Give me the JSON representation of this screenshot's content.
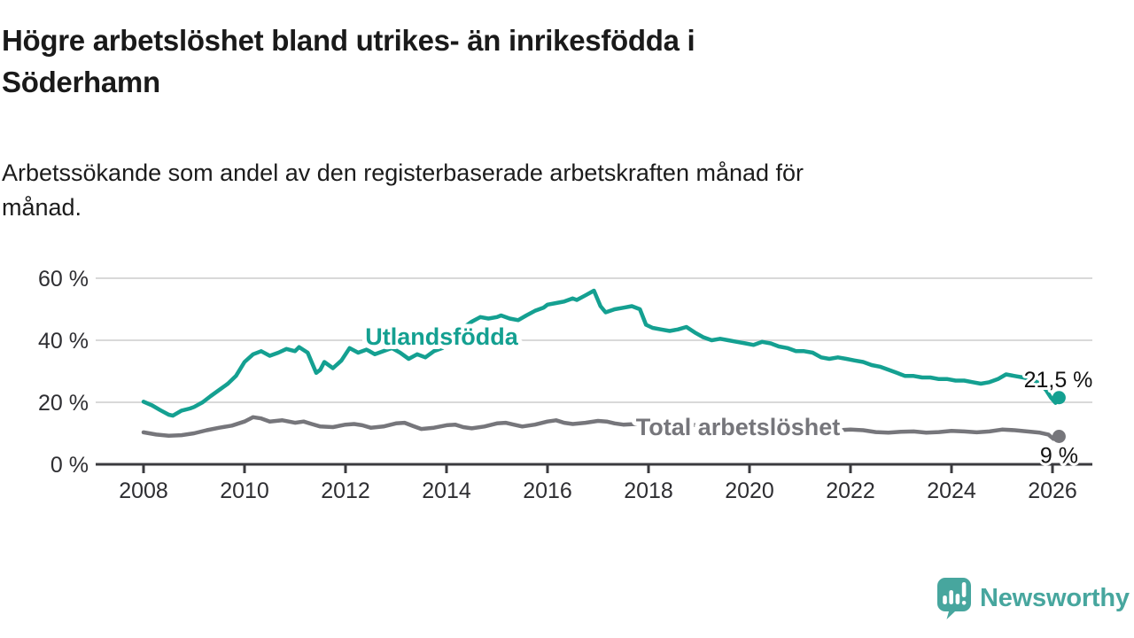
{
  "header": {
    "title": "Högre arbetslöshet bland utrikes- än inrikesfödda i Söderhamn",
    "title_lines": [
      "Högre arbetslöshet bland utrikes- än inrikesfödda i",
      "Söderhamn"
    ],
    "subtitle": "Arbetssökande som andel av den registerbaserade arbetskraften månad för månad.",
    "subtitle_lines": [
      "Arbetssökande som andel av den registerbaserade arbetskraften månad för",
      "månad."
    ]
  },
  "colors": {
    "foreign_line": "#14a091",
    "total_line": "#76767b",
    "axis": "#3b3b3f",
    "tick_text": "#2e2e32",
    "gridline": "#d9d9d9",
    "value_label_text": "#121212",
    "logo_teal": "#47a69e"
  },
  "footer": {
    "brand": "Newsworthy"
  },
  "chart_data": {
    "type": "line",
    "unit": "%",
    "grid": "horizontal",
    "legend_position": "inline-labels-on-lines",
    "y_axis": {
      "ylim": [
        0,
        62
      ],
      "ticks": [
        {
          "value": 0,
          "label": "0 %"
        },
        {
          "value": 20,
          "label": "20 %"
        },
        {
          "value": 40,
          "label": "40 %"
        },
        {
          "value": 60,
          "label": "60 %"
        }
      ]
    },
    "x_axis": {
      "xlim": [
        2007.05,
        2026.8
      ],
      "ticks": [
        {
          "value": 2008,
          "label": "2008"
        },
        {
          "value": 2010,
          "label": "2010"
        },
        {
          "value": 2012,
          "label": "2012"
        },
        {
          "value": 2014,
          "label": "2014"
        },
        {
          "value": 2016,
          "label": "2016"
        },
        {
          "value": 2018,
          "label": "2018"
        },
        {
          "value": 2020,
          "label": "2020"
        },
        {
          "value": 2022,
          "label": "2022"
        },
        {
          "value": 2024,
          "label": "2024"
        },
        {
          "value": 2026,
          "label": "2026"
        }
      ]
    },
    "series": [
      {
        "name": "Utlandsfödda",
        "color": "#14a091",
        "end_dot": true,
        "end_value": 21.5,
        "end_label": "21,5 %",
        "end_label_pos": {
          "anchor": "end",
          "dx": 38,
          "dy": -12
        },
        "inline_label": {
          "text": "Utlandsfödda",
          "x_year": 2012.39,
          "y_value": 38.6
        },
        "points": [
          [
            2008.0,
            20.2
          ],
          [
            2008.17,
            19.0
          ],
          [
            2008.33,
            17.5
          ],
          [
            2008.5,
            16.0
          ],
          [
            2008.58,
            15.7
          ],
          [
            2008.75,
            17.3
          ],
          [
            2008.92,
            18.0
          ],
          [
            2009.0,
            18.5
          ],
          [
            2009.17,
            20.0
          ],
          [
            2009.33,
            22.0
          ],
          [
            2009.5,
            24.0
          ],
          [
            2009.67,
            26.0
          ],
          [
            2009.83,
            28.5
          ],
          [
            2010.0,
            33.0
          ],
          [
            2010.17,
            35.5
          ],
          [
            2010.33,
            36.5
          ],
          [
            2010.5,
            35.0
          ],
          [
            2010.67,
            36.0
          ],
          [
            2010.83,
            37.2
          ],
          [
            2011.0,
            36.5
          ],
          [
            2011.08,
            37.8
          ],
          [
            2011.25,
            36.0
          ],
          [
            2011.42,
            29.5
          ],
          [
            2011.5,
            30.5
          ],
          [
            2011.58,
            33.0
          ],
          [
            2011.75,
            31.0
          ],
          [
            2011.92,
            33.5
          ],
          [
            2012.0,
            35.5
          ],
          [
            2012.08,
            37.5
          ],
          [
            2012.25,
            36.0
          ],
          [
            2012.42,
            37.0
          ],
          [
            2012.58,
            35.5
          ],
          [
            2012.75,
            36.5
          ],
          [
            2012.92,
            37.5
          ],
          [
            2013.08,
            36.0
          ],
          [
            2013.25,
            34.0
          ],
          [
            2013.42,
            35.5
          ],
          [
            2013.58,
            34.5
          ],
          [
            2013.75,
            36.5
          ],
          [
            2013.92,
            37.5
          ],
          [
            2014.0,
            39.0
          ],
          [
            2014.17,
            41.5
          ],
          [
            2014.33,
            44.0
          ],
          [
            2014.5,
            46.0
          ],
          [
            2014.67,
            47.5
          ],
          [
            2014.83,
            47.0
          ],
          [
            2015.0,
            47.5
          ],
          [
            2015.08,
            48.0
          ],
          [
            2015.25,
            47.0
          ],
          [
            2015.42,
            46.5
          ],
          [
            2015.58,
            48.0
          ],
          [
            2015.75,
            49.5
          ],
          [
            2015.92,
            50.5
          ],
          [
            2016.0,
            51.5
          ],
          [
            2016.17,
            52.0
          ],
          [
            2016.33,
            52.5
          ],
          [
            2016.5,
            53.5
          ],
          [
            2016.58,
            53.0
          ],
          [
            2016.75,
            54.5
          ],
          [
            2016.92,
            56.0
          ],
          [
            2017.05,
            51.0
          ],
          [
            2017.15,
            49.0
          ],
          [
            2017.33,
            50.0
          ],
          [
            2017.5,
            50.5
          ],
          [
            2017.67,
            51.0
          ],
          [
            2017.83,
            50.0
          ],
          [
            2017.95,
            45.0
          ],
          [
            2018.08,
            44.0
          ],
          [
            2018.25,
            43.5
          ],
          [
            2018.42,
            43.0
          ],
          [
            2018.58,
            43.5
          ],
          [
            2018.75,
            44.3
          ],
          [
            2018.92,
            42.5
          ],
          [
            2019.08,
            41.0
          ],
          [
            2019.25,
            40.0
          ],
          [
            2019.42,
            40.5
          ],
          [
            2019.58,
            40.0
          ],
          [
            2019.75,
            39.5
          ],
          [
            2019.92,
            39.0
          ],
          [
            2020.08,
            38.5
          ],
          [
            2020.25,
            39.5
          ],
          [
            2020.42,
            39.0
          ],
          [
            2020.58,
            38.0
          ],
          [
            2020.75,
            37.5
          ],
          [
            2020.92,
            36.5
          ],
          [
            2021.08,
            36.5
          ],
          [
            2021.25,
            36.0
          ],
          [
            2021.42,
            34.5
          ],
          [
            2021.58,
            34.0
          ],
          [
            2021.75,
            34.5
          ],
          [
            2021.92,
            34.0
          ],
          [
            2022.08,
            33.5
          ],
          [
            2022.25,
            33.0
          ],
          [
            2022.42,
            32.0
          ],
          [
            2022.58,
            31.5
          ],
          [
            2022.75,
            30.5
          ],
          [
            2022.92,
            29.5
          ],
          [
            2023.08,
            28.5
          ],
          [
            2023.25,
            28.5
          ],
          [
            2023.42,
            28.0
          ],
          [
            2023.58,
            28.0
          ],
          [
            2023.75,
            27.5
          ],
          [
            2023.92,
            27.5
          ],
          [
            2024.08,
            27.0
          ],
          [
            2024.25,
            27.0
          ],
          [
            2024.42,
            26.5
          ],
          [
            2024.58,
            26.0
          ],
          [
            2024.75,
            26.5
          ],
          [
            2024.92,
            27.5
          ],
          [
            2025.08,
            29.0
          ],
          [
            2025.25,
            28.5
          ],
          [
            2025.42,
            28.0
          ],
          [
            2025.58,
            27.5
          ],
          [
            2025.75,
            26.0
          ],
          [
            2025.87,
            24.0
          ],
          [
            2025.97,
            21.5
          ],
          [
            2026.06,
            19.8
          ],
          [
            2026.13,
            21.5
          ]
        ]
      },
      {
        "name": "Total arbetslöshet",
        "color": "#76767b",
        "end_dot": true,
        "end_value": 9,
        "end_label": "9 %",
        "end_label_pos": {
          "anchor": "middle",
          "dx": 0,
          "dy": 30
        },
        "inline_label": {
          "text": "Total arbetslöshet",
          "x_year": 2017.75,
          "y_value": 9.4
        },
        "points": [
          [
            2008.0,
            10.3
          ],
          [
            2008.25,
            9.6
          ],
          [
            2008.5,
            9.2
          ],
          [
            2008.75,
            9.4
          ],
          [
            2009.0,
            10.0
          ],
          [
            2009.25,
            11.0
          ],
          [
            2009.5,
            11.8
          ],
          [
            2009.75,
            12.5
          ],
          [
            2010.0,
            13.8
          ],
          [
            2010.17,
            15.2
          ],
          [
            2010.33,
            14.8
          ],
          [
            2010.5,
            13.8
          ],
          [
            2010.75,
            14.2
          ],
          [
            2011.0,
            13.4
          ],
          [
            2011.17,
            13.8
          ],
          [
            2011.33,
            13.0
          ],
          [
            2011.5,
            12.2
          ],
          [
            2011.75,
            12.0
          ],
          [
            2012.0,
            12.8
          ],
          [
            2012.17,
            13.0
          ],
          [
            2012.33,
            12.6
          ],
          [
            2012.5,
            11.8
          ],
          [
            2012.75,
            12.2
          ],
          [
            2013.0,
            13.2
          ],
          [
            2013.17,
            13.4
          ],
          [
            2013.33,
            12.4
          ],
          [
            2013.5,
            11.4
          ],
          [
            2013.75,
            11.8
          ],
          [
            2014.0,
            12.6
          ],
          [
            2014.17,
            12.8
          ],
          [
            2014.33,
            12.0
          ],
          [
            2014.5,
            11.6
          ],
          [
            2014.75,
            12.2
          ],
          [
            2015.0,
            13.2
          ],
          [
            2015.17,
            13.4
          ],
          [
            2015.33,
            12.8
          ],
          [
            2015.5,
            12.2
          ],
          [
            2015.75,
            12.8
          ],
          [
            2016.0,
            13.8
          ],
          [
            2016.17,
            14.2
          ],
          [
            2016.33,
            13.4
          ],
          [
            2016.5,
            13.0
          ],
          [
            2016.75,
            13.4
          ],
          [
            2017.0,
            14.0
          ],
          [
            2017.17,
            13.8
          ],
          [
            2017.33,
            13.2
          ],
          [
            2017.5,
            12.8
          ],
          [
            2017.75,
            13.0
          ],
          [
            2018.0,
            13.4
          ],
          [
            2018.17,
            13.6
          ],
          [
            2018.33,
            13.0
          ],
          [
            2018.5,
            12.6
          ],
          [
            2018.75,
            12.8
          ],
          [
            2019.0,
            12.6
          ],
          [
            2019.25,
            12.2
          ],
          [
            2019.5,
            11.8
          ],
          [
            2019.75,
            11.6
          ],
          [
            2020.0,
            11.8
          ],
          [
            2020.25,
            12.2
          ],
          [
            2020.5,
            12.4
          ],
          [
            2020.75,
            12.0
          ],
          [
            2021.0,
            12.2
          ],
          [
            2021.25,
            12.0
          ],
          [
            2021.5,
            11.4
          ],
          [
            2021.75,
            11.0
          ],
          [
            2022.0,
            11.2
          ],
          [
            2022.25,
            11.0
          ],
          [
            2022.5,
            10.4
          ],
          [
            2022.75,
            10.2
          ],
          [
            2023.0,
            10.5
          ],
          [
            2023.25,
            10.6
          ],
          [
            2023.5,
            10.2
          ],
          [
            2023.75,
            10.4
          ],
          [
            2024.0,
            10.8
          ],
          [
            2024.25,
            10.6
          ],
          [
            2024.5,
            10.3
          ],
          [
            2024.75,
            10.6
          ],
          [
            2025.0,
            11.2
          ],
          [
            2025.25,
            11.0
          ],
          [
            2025.5,
            10.6
          ],
          [
            2025.75,
            10.2
          ],
          [
            2025.92,
            9.6
          ],
          [
            2026.02,
            8.2
          ],
          [
            2026.13,
            9.0
          ]
        ]
      }
    ]
  }
}
